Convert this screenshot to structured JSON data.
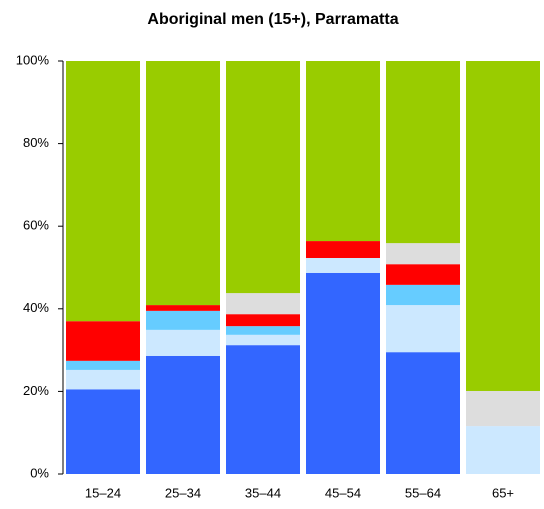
{
  "chart_data": {
    "type": "stacked_bar",
    "title": "Aboriginal men (15+), Parramatta",
    "categories": [
      "15–24",
      "25–34",
      "35–44",
      "45–54",
      "55–64",
      "65+"
    ],
    "series": [
      {
        "color": "#3366ff",
        "values": [
          20.5,
          28.6,
          31.2,
          48.7,
          29.5,
          0
        ]
      },
      {
        "color": "#cce8ff",
        "values": [
          4.7,
          6.3,
          2.5,
          3.6,
          11.4,
          11.6
        ]
      },
      {
        "color": "#66ccff",
        "values": [
          2.2,
          4.6,
          2.1,
          0,
          4.9,
          0
        ]
      },
      {
        "color": "#ff0000",
        "values": [
          9.6,
          1.4,
          2.9,
          4.1,
          5.0,
          0
        ]
      },
      {
        "color": "#dddddd",
        "values": [
          0,
          0,
          5.1,
          0,
          5.1,
          8.5
        ]
      },
      {
        "color": "#99cc00",
        "values": [
          63.0,
          59.1,
          56.2,
          43.6,
          44.1,
          79.9
        ]
      }
    ],
    "ylim": [
      0,
      100
    ],
    "yticks": [
      {
        "value": 0,
        "label": "0%"
      },
      {
        "value": 20,
        "label": "20%"
      },
      {
        "value": 40,
        "label": "40%"
      },
      {
        "value": 60,
        "label": "60%"
      },
      {
        "value": 80,
        "label": "80%"
      },
      {
        "value": 100,
        "label": "100%"
      }
    ]
  }
}
